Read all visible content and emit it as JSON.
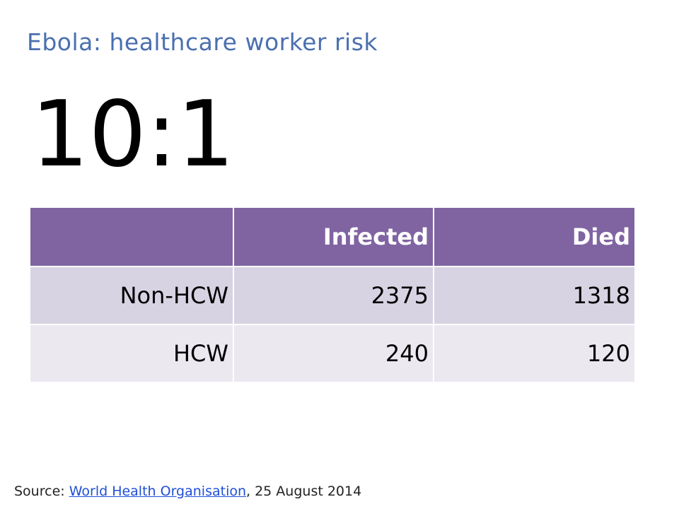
{
  "slide": {
    "title": "Ebola: healthcare worker risk",
    "ratio": "10:1"
  },
  "table": {
    "headers": [
      "",
      "Infected",
      "Died"
    ],
    "rows": [
      {
        "label": "Non-HCW",
        "infected": "2375",
        "died": "1318"
      },
      {
        "label": "HCW",
        "infected": "240",
        "died": "120"
      }
    ]
  },
  "source": {
    "prefix": "Source: ",
    "link_text": "World Health Organisation",
    "suffix": ", 25 August 2014"
  },
  "colors": {
    "title": "#4a6fb0",
    "header_bg": "#8064a2",
    "row_odd_bg": "#d8d3e3",
    "row_even_bg": "#ebe8f0",
    "link": "#1f4fd6"
  }
}
